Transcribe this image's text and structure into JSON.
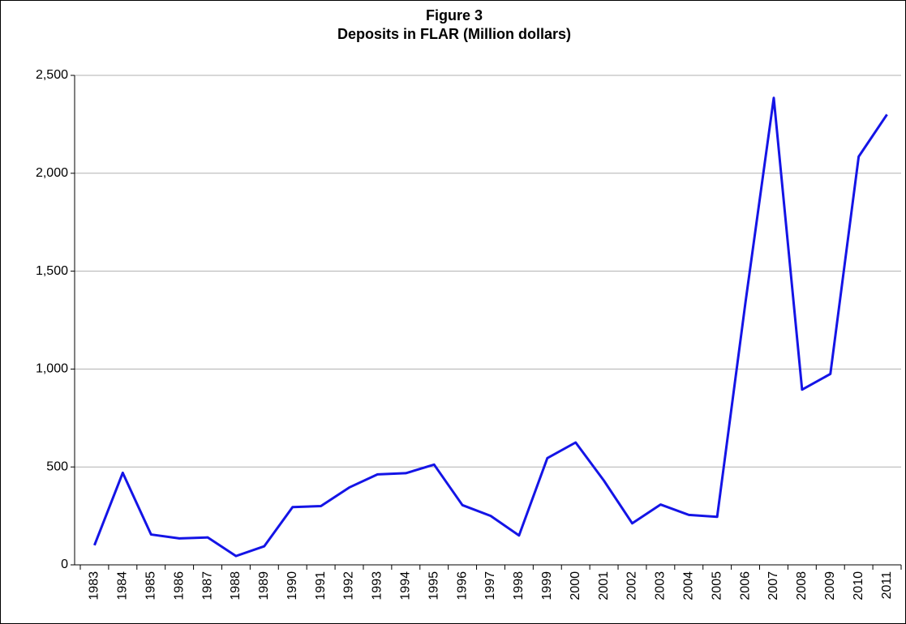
{
  "chart_data": {
    "type": "line",
    "title": "Figure 3",
    "subtitle": "Deposits in FLAR (Million dollars)",
    "categories": [
      "1983",
      "1984",
      "1985",
      "1986",
      "1987",
      "1988",
      "1989",
      "1990",
      "1991",
      "1992",
      "1993",
      "1994",
      "1995",
      "1996",
      "1997",
      "1998",
      "1999",
      "2000",
      "2001",
      "2002",
      "2003",
      "2004",
      "2005",
      "2006",
      "2007",
      "2008",
      "2009",
      "2010",
      "2011"
    ],
    "series": [
      {
        "name": "Deposits",
        "color": "#1414e6",
        "values": [
          100,
          470,
          155,
          135,
          140,
          45,
          95,
          295,
          300,
          395,
          462,
          468,
          512,
          305,
          250,
          150,
          545,
          625,
          430,
          212,
          308,
          255,
          245,
          1340,
          2385,
          895,
          975,
          2085,
          2300
        ]
      }
    ],
    "ylim": [
      0,
      2500
    ],
    "yticks": [
      0,
      500,
      {
        "value": 1000,
        "label": "1,000"
      },
      {
        "value": 1500,
        "label": "1,500"
      },
      {
        "value": 2000,
        "label": "2,000"
      },
      {
        "value": 2500,
        "label": "2,500"
      }
    ],
    "grid": true,
    "legend": false
  }
}
